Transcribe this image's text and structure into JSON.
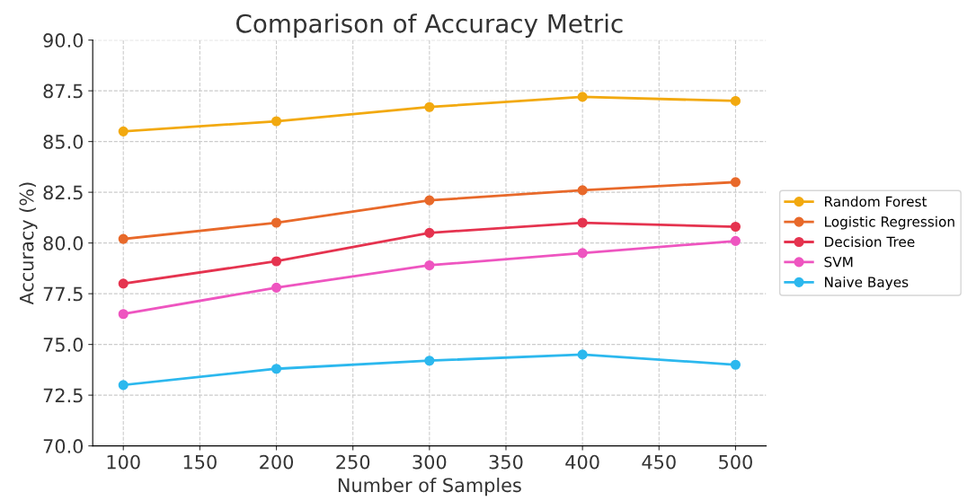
{
  "chart_data": {
    "type": "line",
    "title": "Comparison of Accuracy Metric",
    "xlabel": "Number of Samples",
    "ylabel": "Accuracy (%)",
    "x": [
      100,
      200,
      300,
      400,
      500
    ],
    "series": [
      {
        "name": "Random Forest",
        "color": "#f2a90f",
        "values": [
          85.5,
          86.0,
          86.7,
          87.2,
          87.0
        ]
      },
      {
        "name": "Logistic Regression",
        "color": "#e8692a",
        "values": [
          80.2,
          81.0,
          82.1,
          82.6,
          83.0
        ]
      },
      {
        "name": "Decision Tree",
        "color": "#e5334f",
        "values": [
          78.0,
          79.1,
          80.5,
          81.0,
          80.8
        ]
      },
      {
        "name": "SVM",
        "color": "#ee55c0",
        "values": [
          76.5,
          77.8,
          78.9,
          79.5,
          80.1
        ]
      },
      {
        "name": "Naive Bayes",
        "color": "#2cb8ee",
        "values": [
          73.0,
          73.8,
          74.2,
          74.5,
          74.0
        ]
      }
    ],
    "xlim": [
      80,
      520
    ],
    "xticks": [
      100,
      150,
      200,
      250,
      300,
      350,
      400,
      450,
      500
    ],
    "ylim": [
      70,
      90
    ],
    "yticks": [
      {
        "value": 70,
        "label": "70.0"
      },
      {
        "value": 72.5,
        "label": "72.5"
      },
      {
        "value": 75,
        "label": "75.0"
      },
      {
        "value": 77.5,
        "label": "77.5"
      },
      {
        "value": 80,
        "label": "80.0"
      },
      {
        "value": 82.5,
        "label": "82.5"
      },
      {
        "value": 85,
        "label": "85.0"
      },
      {
        "value": 87.5,
        "label": "87.5"
      },
      {
        "value": 90,
        "label": "90.0"
      }
    ],
    "grid": true,
    "legend": "right",
    "marker": "circle",
    "line_style": "solid"
  }
}
